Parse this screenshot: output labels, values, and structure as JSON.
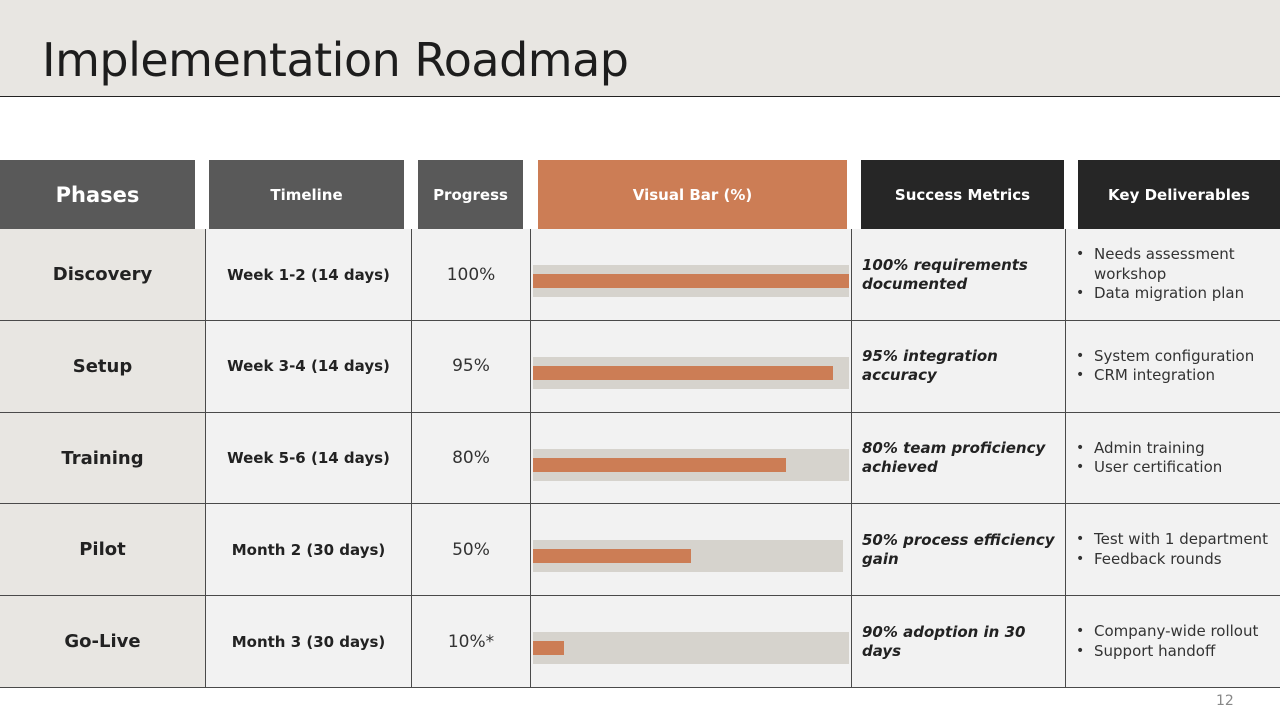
{
  "title": "Implementation Roadmap",
  "page_number": "12",
  "colors": {
    "header_gray": "#595959",
    "header_orange": "#cc7d55",
    "header_dark": "#262626",
    "bar_fill": "#cc7d55",
    "bar_track": "#d6d3cd"
  },
  "headers": {
    "phases": "Phases",
    "timeline": "Timeline",
    "progress": "Progress",
    "visual_bar": "Visual Bar (%)",
    "success_metrics": "Success Metrics",
    "key_deliverables": "Key Deliverables"
  },
  "rows": [
    {
      "phase": "Discovery",
      "timeline": "Week 1-2 (14 days)",
      "progress_label": "100%",
      "progress_value": 100,
      "metric": "100% requirements documented",
      "deliverables": [
        "Needs assessment workshop",
        "Data migration plan"
      ]
    },
    {
      "phase": "Setup",
      "timeline": "Week 3-4 (14 days)",
      "progress_label": "95%",
      "progress_value": 95,
      "metric": "95% integration accuracy",
      "deliverables": [
        "System configuration",
        "CRM integration"
      ]
    },
    {
      "phase": "Training",
      "timeline": "Week 5-6 (14 days)",
      "progress_label": "80%",
      "progress_value": 80,
      "metric": "80% team proficiency achieved",
      "deliverables": [
        "Admin training",
        "User certification"
      ]
    },
    {
      "phase": "Pilot",
      "timeline": "Month 2 (30 days)",
      "progress_label": "50%",
      "progress_value": 50,
      "metric": "50% process efficiency gain",
      "deliverables": [
        "Test with 1 department",
        "Feedback rounds"
      ]
    },
    {
      "phase": "Go-Live",
      "timeline": "Month 3 (30 days)",
      "progress_label": "10%*",
      "progress_value": 10,
      "metric": "90% adoption in 30 days",
      "deliverables": [
        "Company-wide rollout",
        "Support handoff"
      ]
    }
  ]
}
